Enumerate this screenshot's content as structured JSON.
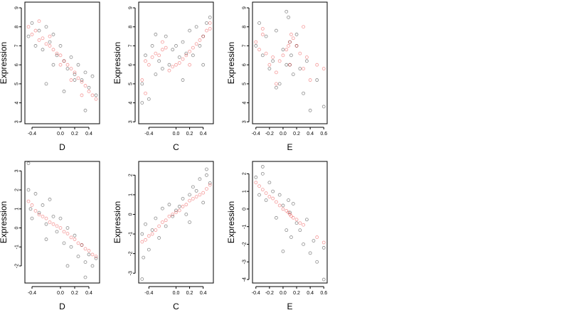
{
  "chart_data": [
    {
      "type": "scatter",
      "xlabel": "D",
      "ylabel": "Expression",
      "xlim": [
        -0.5,
        0.55
      ],
      "ylim": [
        2.9,
        9.3
      ],
      "xticks": [
        -0.4,
        0.0,
        0.2,
        0.4
      ],
      "xtick_labels": [
        "-0.4",
        "0.0",
        "0.2",
        "0.4"
      ],
      "yticks": [
        3,
        4,
        5,
        6,
        7,
        8,
        9
      ],
      "ytick_labels": [
        "3",
        "4",
        "5",
        "6",
        "7",
        "8",
        "9"
      ],
      "series": [
        {
          "color": "black",
          "x": [
            -0.45,
            -0.4,
            -0.35,
            -0.3,
            -0.25,
            -0.2,
            -0.15,
            -0.1,
            -0.05,
            0.0,
            0.05,
            0.1,
            0.15,
            0.2,
            0.25,
            0.3,
            0.35,
            0.4,
            0.45,
            0.5,
            -0.2,
            -0.1,
            0.05,
            0.2,
            0.35
          ],
          "y": [
            7.5,
            8.2,
            7.0,
            7.8,
            6.8,
            8.0,
            7.2,
            7.6,
            6.5,
            7.0,
            6.2,
            5.8,
            6.4,
            5.5,
            6.0,
            5.2,
            5.6,
            4.8,
            5.4,
            4.4,
            5.0,
            6.0,
            4.6,
            5.2,
            3.6
          ]
        },
        {
          "color": "red",
          "x": [
            -0.45,
            -0.4,
            -0.35,
            -0.3,
            -0.25,
            -0.2,
            -0.15,
            -0.1,
            -0.05,
            0.0,
            0.05,
            0.1,
            0.15,
            0.2,
            0.25,
            0.3,
            0.35,
            0.4,
            0.45,
            0.5,
            -0.3,
            -0.15,
            0.0,
            0.15,
            0.3
          ],
          "y": [
            8.0,
            7.6,
            7.8,
            7.3,
            7.4,
            7.1,
            7.0,
            6.8,
            6.6,
            6.5,
            6.2,
            6.0,
            5.8,
            5.6,
            5.3,
            5.1,
            4.9,
            4.6,
            4.4,
            4.2,
            8.3,
            7.5,
            6.0,
            5.2,
            4.4
          ]
        }
      ]
    },
    {
      "type": "scatter",
      "xlabel": "C",
      "ylabel": "Expression",
      "xlim": [
        -0.55,
        0.55
      ],
      "ylim": [
        2.9,
        9.3
      ],
      "xticks": [
        -0.4,
        0.0,
        0.2,
        0.4
      ],
      "xtick_labels": [
        "-0.4",
        "0.0",
        "0.2",
        "0.4"
      ],
      "yticks": [
        3,
        4,
        5,
        6,
        7,
        8,
        9
      ],
      "ytick_labels": [
        "3",
        "4",
        "5",
        "6",
        "7",
        "8",
        "9"
      ],
      "series": [
        {
          "color": "black",
          "x": [
            -0.5,
            -0.45,
            -0.4,
            -0.35,
            -0.3,
            -0.25,
            -0.2,
            -0.15,
            -0.1,
            -0.05,
            0.0,
            0.05,
            0.1,
            0.15,
            0.2,
            0.25,
            0.3,
            0.35,
            0.4,
            0.45,
            0.5,
            -0.5,
            -0.3,
            0.1,
            0.4
          ],
          "y": [
            5.0,
            6.5,
            4.2,
            7.0,
            5.5,
            6.2,
            5.8,
            7.5,
            6.0,
            6.8,
            7.0,
            6.4,
            7.2,
            6.6,
            7.8,
            6.5,
            8.0,
            7.0,
            7.5,
            8.2,
            8.5,
            4.0,
            7.6,
            5.2,
            6.0
          ]
        },
        {
          "color": "red",
          "x": [
            -0.5,
            -0.45,
            -0.4,
            -0.35,
            -0.3,
            -0.25,
            -0.2,
            -0.15,
            -0.1,
            -0.05,
            0.0,
            0.05,
            0.1,
            0.15,
            0.2,
            0.25,
            0.3,
            0.35,
            0.4,
            0.45,
            0.5,
            -0.45,
            -0.2,
            0.2,
            0.5
          ],
          "y": [
            5.2,
            6.2,
            6.0,
            6.4,
            6.6,
            6.5,
            6.8,
            6.9,
            5.7,
            5.9,
            6.0,
            6.1,
            6.3,
            6.5,
            6.7,
            6.9,
            7.1,
            7.3,
            7.5,
            7.8,
            8.2,
            4.5,
            7.2,
            6.0,
            7.9
          ]
        }
      ]
    },
    {
      "type": "scatter",
      "xlabel": "E",
      "ylabel": "Expression",
      "xlim": [
        -0.45,
        0.65
      ],
      "ylim": [
        2.9,
        9.3
      ],
      "xticks": [
        -0.4,
        -0.2,
        0.0,
        0.2,
        0.4,
        0.6
      ],
      "xtick_labels": [
        "-0.4",
        "-0.2",
        "0.0",
        "0.2",
        "0.4",
        "0.6"
      ],
      "yticks": [
        3,
        4,
        5,
        6,
        7,
        8,
        9
      ],
      "ytick_labels": [
        "3",
        "4",
        "5",
        "6",
        "7",
        "8",
        "9"
      ],
      "series": [
        {
          "color": "black",
          "x": [
            -0.4,
            -0.35,
            -0.3,
            -0.25,
            -0.2,
            -0.15,
            -0.1,
            -0.05,
            0.0,
            0.05,
            0.08,
            0.1,
            0.12,
            0.15,
            0.2,
            0.25,
            0.3,
            0.35,
            0.4,
            0.5,
            0.6,
            -0.1,
            0.05,
            0.1,
            0.2
          ],
          "y": [
            7.0,
            8.2,
            6.5,
            7.5,
            5.8,
            6.2,
            7.8,
            5.0,
            6.8,
            6.0,
            8.5,
            7.2,
            6.5,
            5.5,
            7.0,
            5.8,
            4.5,
            6.2,
            3.6,
            5.2,
            3.8,
            4.8,
            8.8,
            6.0,
            7.6
          ]
        },
        {
          "color": "red",
          "x": [
            -0.4,
            -0.35,
            -0.3,
            -0.25,
            -0.2,
            -0.15,
            -0.1,
            -0.05,
            0.0,
            0.05,
            0.08,
            0.1,
            0.12,
            0.15,
            0.2,
            0.25,
            0.3,
            0.35,
            0.4,
            0.5,
            0.6,
            -0.3,
            -0.1,
            0.1,
            0.3
          ],
          "y": [
            7.2,
            6.8,
            7.6,
            6.6,
            6.0,
            6.4,
            5.6,
            6.2,
            6.5,
            6.8,
            7.0,
            7.2,
            7.6,
            7.4,
            7.0,
            6.6,
            5.8,
            6.4,
            5.2,
            6.0,
            5.8,
            7.9,
            5.0,
            6.0,
            8.0
          ]
        }
      ]
    },
    {
      "type": "scatter",
      "xlabel": "D",
      "ylabel": "Expression",
      "xlim": [
        -0.5,
        0.55
      ],
      "ylim": [
        -2.9,
        3.5
      ],
      "xticks": [
        -0.4,
        0.0,
        0.2,
        0.4
      ],
      "xtick_labels": [
        "-0.4",
        "0.0",
        "0.2",
        "0.4"
      ],
      "yticks": [
        -2,
        -1,
        0,
        1,
        2,
        3
      ],
      "ytick_labels": [
        "-2",
        "-1",
        "0",
        "1",
        "2",
        "3"
      ],
      "series": [
        {
          "color": "black",
          "x": [
            -0.45,
            -0.42,
            -0.4,
            -0.35,
            -0.3,
            -0.25,
            -0.2,
            -0.15,
            -0.1,
            -0.05,
            0.0,
            0.05,
            0.1,
            0.15,
            0.2,
            0.25,
            0.3,
            0.35,
            0.4,
            0.45,
            0.5,
            -0.45,
            -0.2,
            0.1,
            0.35
          ],
          "y": [
            2.0,
            1.0,
            0.5,
            1.8,
            0.8,
            1.2,
            0.2,
            1.5,
            0.6,
            -0.2,
            0.5,
            -0.8,
            0.0,
            -1.0,
            -0.4,
            -1.5,
            -0.9,
            -1.8,
            -1.4,
            -2.0,
            -1.6,
            3.4,
            -0.6,
            -2.0,
            -2.6
          ]
        },
        {
          "color": "red",
          "x": [
            -0.45,
            -0.4,
            -0.35,
            -0.3,
            -0.25,
            -0.2,
            -0.15,
            -0.1,
            -0.05,
            0.0,
            0.05,
            0.1,
            0.15,
            0.2,
            0.25,
            0.3,
            0.35,
            0.4,
            0.45,
            0.5
          ],
          "y": [
            1.4,
            1.2,
            0.9,
            0.7,
            0.6,
            0.5,
            0.3,
            0.2,
            0.1,
            0.0,
            -0.2,
            -0.3,
            -0.5,
            -0.6,
            -0.8,
            -0.9,
            -1.1,
            -1.2,
            -1.4,
            -1.5
          ]
        }
      ]
    },
    {
      "type": "scatter",
      "xlabel": "C",
      "ylabel": "Expression",
      "xlim": [
        -0.55,
        0.55
      ],
      "ylim": [
        -3.5,
        2.7
      ],
      "xticks": [
        -0.4,
        0.0,
        0.2,
        0.4
      ],
      "xtick_labels": [
        "-0.4",
        "0.0",
        "0.2",
        "0.4"
      ],
      "yticks": [
        -3,
        -2,
        -1,
        0,
        1,
        2
      ],
      "ytick_labels": [
        "-3",
        "-2",
        "-1",
        "0",
        "1",
        "2"
      ],
      "series": [
        {
          "color": "black",
          "x": [
            -0.5,
            -0.48,
            -0.45,
            -0.4,
            -0.35,
            -0.3,
            -0.25,
            -0.2,
            -0.15,
            -0.1,
            -0.05,
            0.0,
            0.05,
            0.1,
            0.15,
            0.2,
            0.25,
            0.3,
            0.35,
            0.4,
            0.45,
            0.5,
            -0.5,
            0.2,
            0.45
          ],
          "y": [
            -1.0,
            -2.2,
            -0.5,
            -1.8,
            -0.8,
            -0.2,
            -1.2,
            0.3,
            -0.6,
            0.5,
            -0.1,
            0.2,
            0.4,
            0.8,
            0.0,
            1.0,
            1.4,
            1.2,
            1.8,
            0.6,
            2.0,
            1.6,
            -3.3,
            -0.4,
            2.3
          ]
        },
        {
          "color": "red",
          "x": [
            -0.5,
            -0.45,
            -0.4,
            -0.35,
            -0.3,
            -0.25,
            -0.2,
            -0.15,
            -0.1,
            -0.05,
            0.0,
            0.05,
            0.1,
            0.15,
            0.2,
            0.25,
            0.3,
            0.35,
            0.4,
            0.45,
            0.5
          ],
          "y": [
            -1.4,
            -1.3,
            -1.1,
            -1.0,
            -0.8,
            -0.6,
            -0.4,
            -0.3,
            -0.1,
            0.0,
            0.1,
            0.2,
            0.4,
            0.5,
            0.7,
            0.8,
            0.9,
            1.0,
            1.1,
            1.3,
            1.5
          ]
        }
      ]
    },
    {
      "type": "scatter",
      "xlabel": "E",
      "ylabel": "Expression",
      "xlim": [
        -0.45,
        0.65
      ],
      "ylim": [
        -4.2,
        2.7
      ],
      "xticks": [
        -0.4,
        -0.2,
        0.0,
        0.2,
        0.4,
        0.6
      ],
      "xtick_labels": [
        "-0.4",
        "-0.2",
        "0.0",
        "0.2",
        "0.4",
        "0.6"
      ],
      "yticks": [
        -4,
        -3,
        -2,
        -1,
        0,
        1,
        2
      ],
      "ytick_labels": [
        "-4",
        "-3",
        "-2",
        "-1",
        "0",
        "1",
        "2"
      ],
      "series": [
        {
          "color": "black",
          "x": [
            -0.4,
            -0.35,
            -0.3,
            -0.25,
            -0.2,
            -0.15,
            -0.1,
            -0.05,
            0.0,
            0.05,
            0.08,
            0.1,
            0.12,
            0.15,
            0.2,
            0.25,
            0.3,
            0.35,
            0.4,
            0.45,
            0.5,
            0.6,
            -0.3,
            0.0,
            0.6
          ],
          "y": [
            1.8,
            0.8,
            2.0,
            0.5,
            1.5,
            1.0,
            -0.5,
            0.8,
            0.2,
            -1.2,
            0.5,
            -0.2,
            -1.6,
            0.3,
            -0.8,
            -1.2,
            -2.0,
            -0.6,
            -2.5,
            -1.8,
            -3.0,
            -2.2,
            2.4,
            -2.4,
            -4.0
          ]
        },
        {
          "color": "red",
          "x": [
            -0.4,
            -0.35,
            -0.3,
            -0.25,
            -0.2,
            -0.15,
            -0.1,
            -0.05,
            0.0,
            0.05,
            0.08,
            0.1,
            0.12,
            0.15,
            0.2,
            0.25,
            0.3,
            0.5,
            0.6
          ],
          "y": [
            1.5,
            1.3,
            1.1,
            0.9,
            0.7,
            0.6,
            0.4,
            0.2,
            0.0,
            -0.1,
            -0.2,
            -0.3,
            -0.4,
            -0.5,
            -0.6,
            -0.8,
            -0.9,
            -1.6,
            -1.9
          ]
        }
      ]
    }
  ]
}
